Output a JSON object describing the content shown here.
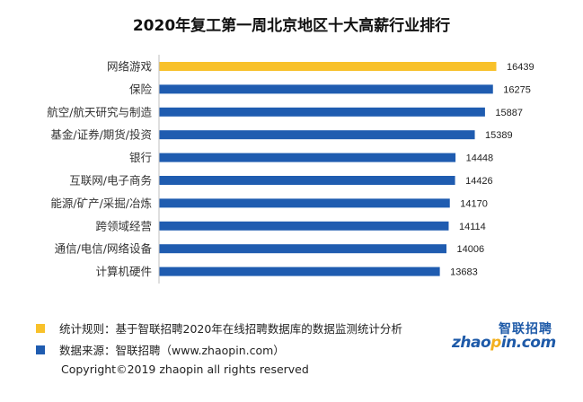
{
  "chart_data": {
    "type": "bar",
    "orientation": "horizontal",
    "title": "2020年复工第一周北京地区十大高薪行业排行",
    "categories": [
      "网络游戏",
      "保险",
      "航空/航天研究与制造",
      "基金/证券/期货/投资",
      "银行",
      "互联网/电子商务",
      "能源/矿产/采掘/冶炼",
      "跨领域经营",
      "通信/电信/网络设备",
      "计算机硬件"
    ],
    "values": [
      16439,
      16275,
      15887,
      15389,
      14448,
      14426,
      14170,
      14114,
      14006,
      13683
    ],
    "highlight_index": 0,
    "highlight_color": "#f8c12a",
    "bar_color": "#1f5cb0",
    "xlim": [
      0,
      16439
    ]
  },
  "legend": [
    {
      "color": "#f8c12a",
      "text": "统计规则：基于智联招聘2020年在线招聘数据库的数据监测统计分析"
    },
    {
      "color": "#1f5cb0",
      "text": "数据来源：智联招聘（www.zhaopin.com）"
    }
  ],
  "logo": {
    "cn": "智联招聘",
    "en_prefix": "zhao",
    "en_dot": "p",
    "en_suffix": "in.com"
  },
  "copyright": "Copyright©2019 zhaopin all rights reserved"
}
